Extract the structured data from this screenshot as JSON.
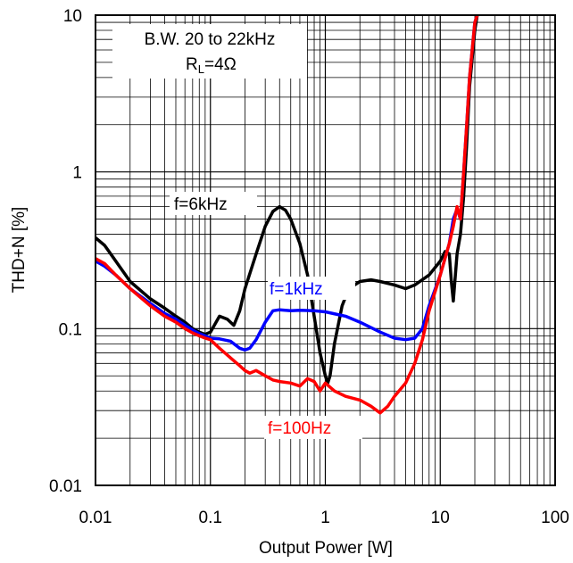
{
  "chart_data": {
    "type": "line",
    "xlabel": "Output Power [W]",
    "ylabel": "THD+N [%]",
    "x_scale": "log",
    "y_scale": "log",
    "xlim": [
      0.01,
      100
    ],
    "ylim": [
      0.01,
      10
    ],
    "x_ticks": [
      "0.01",
      "0.1",
      "1",
      "10",
      "100"
    ],
    "y_ticks": [
      "0.01",
      "0.1",
      "1",
      "10"
    ],
    "grid": true,
    "conditions": {
      "bandwidth": "B.W. 20 to 22kHz",
      "load_prefix": "R",
      "load_subscript": "L",
      "load_suffix": "=4Ω"
    },
    "series": [
      {
        "name": "f=6kHz",
        "color": "#000000",
        "points": [
          [
            0.01,
            0.38
          ],
          [
            0.012,
            0.34
          ],
          [
            0.015,
            0.27
          ],
          [
            0.02,
            0.2
          ],
          [
            0.03,
            0.155
          ],
          [
            0.04,
            0.135
          ],
          [
            0.05,
            0.12
          ],
          [
            0.06,
            0.11
          ],
          [
            0.07,
            0.1
          ],
          [
            0.08,
            0.095
          ],
          [
            0.09,
            0.092
          ],
          [
            0.1,
            0.095
          ],
          [
            0.12,
            0.12
          ],
          [
            0.14,
            0.115
          ],
          [
            0.16,
            0.105
          ],
          [
            0.18,
            0.13
          ],
          [
            0.2,
            0.18
          ],
          [
            0.25,
            0.3
          ],
          [
            0.3,
            0.45
          ],
          [
            0.35,
            0.56
          ],
          [
            0.4,
            0.6
          ],
          [
            0.45,
            0.57
          ],
          [
            0.5,
            0.5
          ],
          [
            0.6,
            0.35
          ],
          [
            0.7,
            0.22
          ],
          [
            0.8,
            0.12
          ],
          [
            0.9,
            0.07
          ],
          [
            1.0,
            0.05
          ],
          [
            1.05,
            0.045
          ],
          [
            1.1,
            0.05
          ],
          [
            1.2,
            0.08
          ],
          [
            1.4,
            0.14
          ],
          [
            1.6,
            0.18
          ],
          [
            2.0,
            0.2
          ],
          [
            2.5,
            0.205
          ],
          [
            3.0,
            0.2
          ],
          [
            4.0,
            0.19
          ],
          [
            5.0,
            0.18
          ],
          [
            6.0,
            0.19
          ],
          [
            8.0,
            0.22
          ],
          [
            10,
            0.27
          ],
          [
            11,
            0.31
          ],
          [
            12,
            0.3
          ],
          [
            12.5,
            0.2
          ],
          [
            13,
            0.15
          ],
          [
            14,
            0.3
          ],
          [
            15,
            0.4
          ],
          [
            16,
            0.7
          ],
          [
            17,
            1.5
          ],
          [
            18,
            3.5
          ],
          [
            20,
            8
          ],
          [
            21,
            10
          ]
        ]
      },
      {
        "name": "f=1kHz",
        "color": "#0000ff",
        "points": [
          [
            0.01,
            0.27
          ],
          [
            0.012,
            0.25
          ],
          [
            0.015,
            0.22
          ],
          [
            0.02,
            0.18
          ],
          [
            0.03,
            0.145
          ],
          [
            0.04,
            0.125
          ],
          [
            0.05,
            0.115
          ],
          [
            0.06,
            0.105
          ],
          [
            0.07,
            0.098
          ],
          [
            0.08,
            0.093
          ],
          [
            0.09,
            0.09
          ],
          [
            0.1,
            0.087
          ],
          [
            0.12,
            0.086
          ],
          [
            0.15,
            0.083
          ],
          [
            0.18,
            0.075
          ],
          [
            0.2,
            0.073
          ],
          [
            0.22,
            0.075
          ],
          [
            0.25,
            0.085
          ],
          [
            0.3,
            0.11
          ],
          [
            0.35,
            0.13
          ],
          [
            0.4,
            0.132
          ],
          [
            0.5,
            0.13
          ],
          [
            0.6,
            0.131
          ],
          [
            0.8,
            0.13
          ],
          [
            1.0,
            0.128
          ],
          [
            1.5,
            0.12
          ],
          [
            2.0,
            0.11
          ],
          [
            3.0,
            0.095
          ],
          [
            4.0,
            0.087
          ],
          [
            5.0,
            0.085
          ],
          [
            6.0,
            0.087
          ],
          [
            7.0,
            0.1
          ],
          [
            8.0,
            0.14
          ],
          [
            10,
            0.22
          ],
          [
            12,
            0.35
          ],
          [
            13,
            0.5
          ],
          [
            14,
            0.58
          ],
          [
            15,
            0.5
          ],
          [
            16,
            1.0
          ],
          [
            17,
            2.0
          ],
          [
            18,
            4.0
          ],
          [
            20,
            9
          ],
          [
            21,
            10
          ]
        ]
      },
      {
        "name": "f=100Hz",
        "color": "#ff0000",
        "points": [
          [
            0.01,
            0.28
          ],
          [
            0.012,
            0.26
          ],
          [
            0.015,
            0.22
          ],
          [
            0.02,
            0.18
          ],
          [
            0.03,
            0.14
          ],
          [
            0.04,
            0.12
          ],
          [
            0.05,
            0.11
          ],
          [
            0.06,
            0.1
          ],
          [
            0.07,
            0.094
          ],
          [
            0.08,
            0.09
          ],
          [
            0.09,
            0.087
          ],
          [
            0.1,
            0.085
          ],
          [
            0.12,
            0.075
          ],
          [
            0.15,
            0.065
          ],
          [
            0.18,
            0.058
          ],
          [
            0.2,
            0.054
          ],
          [
            0.22,
            0.052
          ],
          [
            0.25,
            0.054
          ],
          [
            0.3,
            0.05
          ],
          [
            0.35,
            0.047
          ],
          [
            0.4,
            0.046
          ],
          [
            0.5,
            0.045
          ],
          [
            0.6,
            0.043
          ],
          [
            0.7,
            0.048
          ],
          [
            0.8,
            0.046
          ],
          [
            0.9,
            0.04
          ],
          [
            1.0,
            0.045
          ],
          [
            1.2,
            0.04
          ],
          [
            1.5,
            0.037
          ],
          [
            2.0,
            0.035
          ],
          [
            2.5,
            0.032
          ],
          [
            3.0,
            0.029
          ],
          [
            3.5,
            0.032
          ],
          [
            4.0,
            0.037
          ],
          [
            5.0,
            0.045
          ],
          [
            6.0,
            0.06
          ],
          [
            7.0,
            0.085
          ],
          [
            8.0,
            0.13
          ],
          [
            10,
            0.22
          ],
          [
            12,
            0.35
          ],
          [
            13,
            0.45
          ],
          [
            14,
            0.6
          ],
          [
            15,
            0.5
          ],
          [
            16,
            1.0
          ],
          [
            17,
            2.0
          ],
          [
            18,
            4.0
          ],
          [
            20,
            9
          ],
          [
            21,
            10
          ]
        ]
      }
    ],
    "annotations": [
      {
        "text": "f=6kHz",
        "color": "#000000"
      },
      {
        "text": "f=1kHz",
        "color": "#0000ff"
      },
      {
        "text": "f=100Hz",
        "color": "#ff0000"
      }
    ]
  }
}
